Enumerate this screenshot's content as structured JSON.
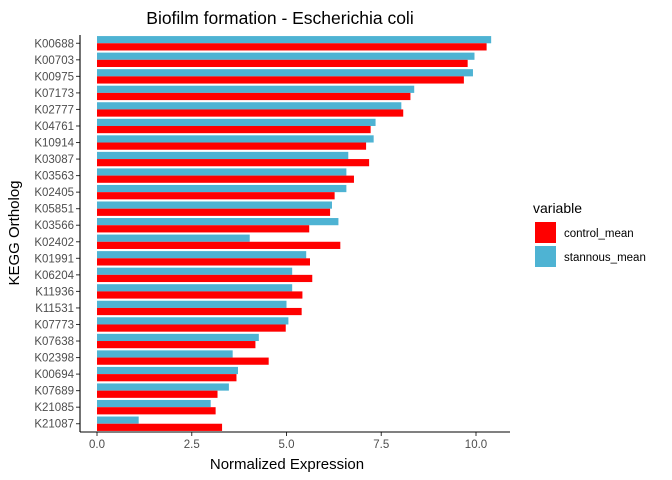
{
  "chart_data": {
    "type": "bar",
    "orientation": "horizontal",
    "title": "Biofilm formation - Escherichia coli",
    "xlabel": "Normalized Expression",
    "ylabel": "KEGG Ortholog",
    "xlim": [
      0,
      10.7
    ],
    "xticks": [
      0.0,
      2.5,
      5.0,
      7.5,
      10.0
    ],
    "xtick_labels": [
      "0.0",
      "2.5",
      "5.0",
      "7.5",
      "10.0"
    ],
    "grid": false,
    "legend_position": "right",
    "legend_title": "variable",
    "categories": [
      "K00688",
      "K00703",
      "K00975",
      "K07173",
      "K02777",
      "K04761",
      "K10914",
      "K03087",
      "K03563",
      "K02405",
      "K05851",
      "K03566",
      "K02402",
      "K01991",
      "K06204",
      "K11936",
      "K11531",
      "K07773",
      "K07638",
      "K02398",
      "K00694",
      "K07689",
      "K21085",
      "K21087"
    ],
    "series": [
      {
        "name": "control_mean",
        "color": "#ff0000",
        "values": [
          10.28,
          9.78,
          9.68,
          8.27,
          8.08,
          7.22,
          7.1,
          7.18,
          6.78,
          6.27,
          6.15,
          5.6,
          6.42,
          5.62,
          5.68,
          5.42,
          5.4,
          4.98,
          4.18,
          4.53,
          3.68,
          3.18,
          3.13,
          3.3
        ]
      },
      {
        "name": "stannous_mean",
        "color": "#4eb3d3",
        "values": [
          10.4,
          9.96,
          9.92,
          8.37,
          8.03,
          7.35,
          7.3,
          6.63,
          6.58,
          6.58,
          6.2,
          6.37,
          4.03,
          5.52,
          5.15,
          5.15,
          5.0,
          5.05,
          4.27,
          3.58,
          3.72,
          3.48,
          3.0,
          1.1
        ]
      }
    ]
  }
}
